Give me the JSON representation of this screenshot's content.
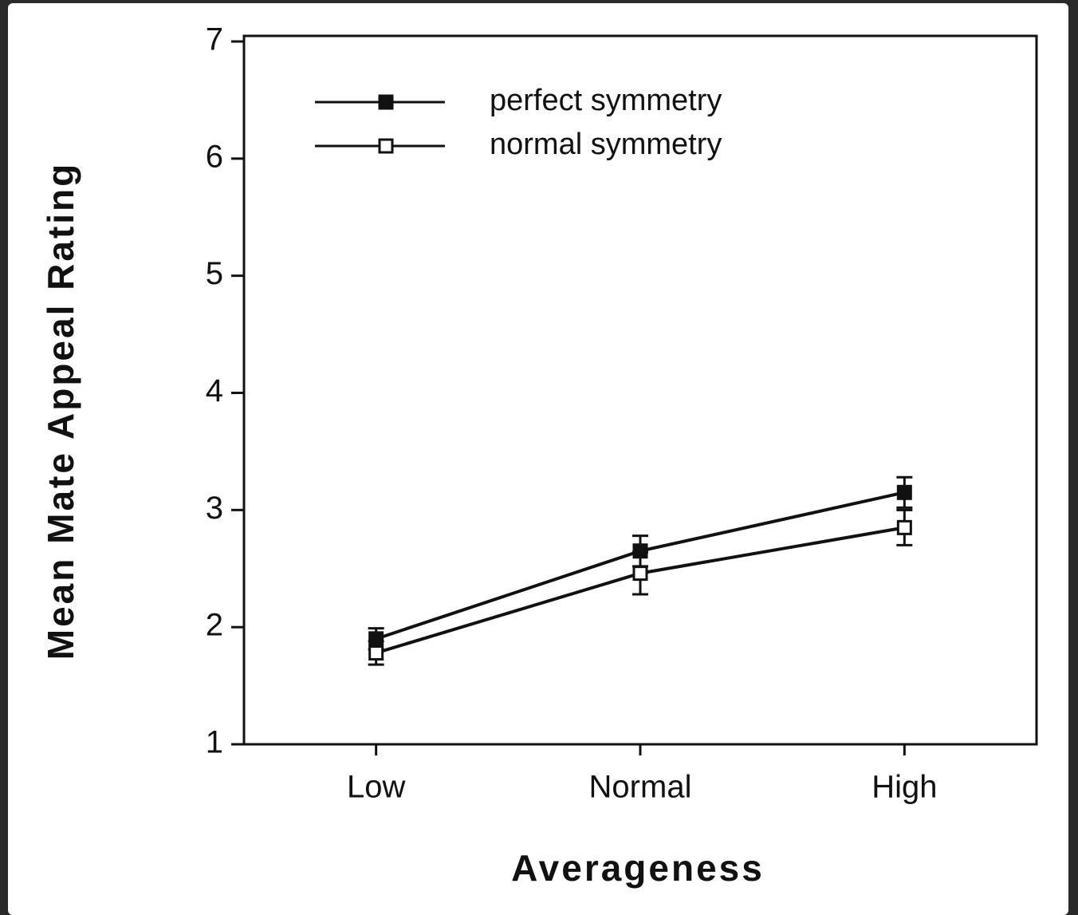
{
  "chart_data": {
    "type": "line",
    "x_label": "Averageness",
    "y_label": "Mean Mate Appeal Rating",
    "categories": [
      "Low",
      "Normal",
      "High"
    ],
    "series": [
      {
        "name": "perfect symmetry",
        "color": "#111111",
        "marker": "filled-square",
        "values": [
          1.9,
          2.65,
          3.15
        ],
        "errors": [
          0.09,
          0.13,
          0.13
        ]
      },
      {
        "name": "normal symmetry",
        "color": "#111111",
        "marker": "open-square",
        "values": [
          1.78,
          2.46,
          2.85
        ],
        "errors": [
          0.1,
          0.18,
          0.15
        ]
      }
    ],
    "ylim": [
      1,
      7
    ],
    "yticks": [
      1,
      2,
      3,
      4,
      5,
      6,
      7
    ],
    "grid": false,
    "legend": "upper left"
  }
}
